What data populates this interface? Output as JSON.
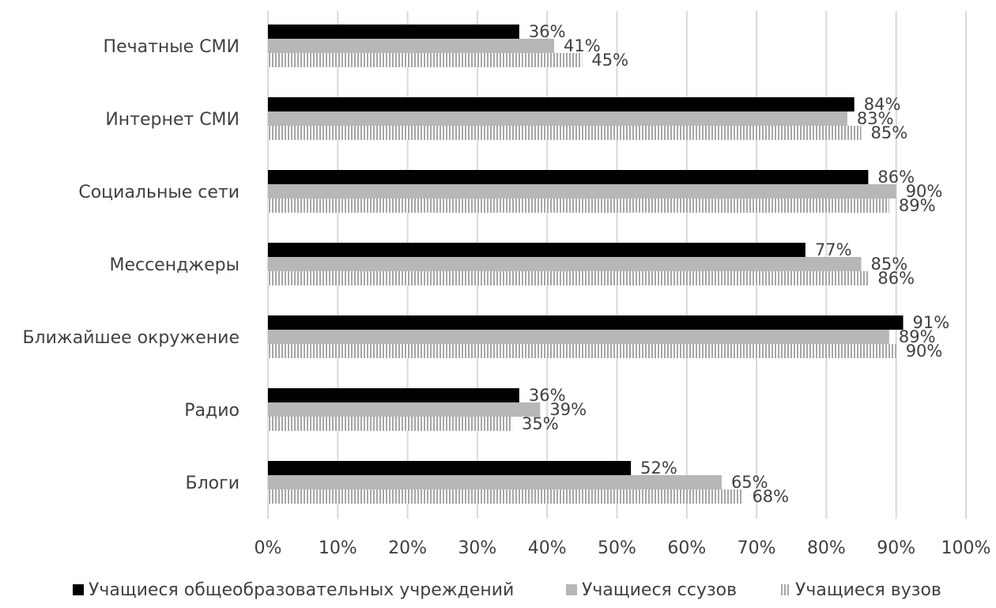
{
  "chart_data": {
    "type": "bar",
    "orientation": "horizontal",
    "title": "",
    "xlabel": "",
    "ylabel": "",
    "xlim": [
      0,
      100
    ],
    "x_ticks": [
      "0%",
      "10%",
      "20%",
      "30%",
      "40%",
      "50%",
      "60%",
      "70%",
      "80%",
      "90%",
      "100%"
    ],
    "grid": "vertical",
    "legend_position": "bottom",
    "categories": [
      "Печатные СМИ",
      "Интернет СМИ",
      "Социальные сети",
      "Мессенджеры",
      "Ближайшее окружение",
      "Радио",
      "Блоги"
    ],
    "series": [
      {
        "name": "Учащиеся общеобразовательных учреждений",
        "values": [
          36,
          84,
          86,
          77,
          91,
          36,
          52
        ],
        "labels": [
          "36%",
          "84%",
          "86%",
          "77%",
          "91%",
          "36%",
          "52%"
        ],
        "color": "#000000",
        "pattern": "solid"
      },
      {
        "name": "Учащиеся ссузов",
        "values": [
          41,
          83,
          90,
          85,
          89,
          39,
          65
        ],
        "labels": [
          "41%",
          "83%",
          "90%",
          "85%",
          "89%",
          "39%",
          "65%"
        ],
        "color": "#b7b7b7",
        "pattern": "solid"
      },
      {
        "name": "Учащиеся вузов",
        "values": [
          45,
          85,
          89,
          86,
          90,
          35,
          68
        ],
        "labels": [
          "45%",
          "85%",
          "89%",
          "86%",
          "90%",
          "35%",
          "68%"
        ],
        "color": "#a6a6a6",
        "pattern": "vertical-stripes"
      }
    ]
  }
}
